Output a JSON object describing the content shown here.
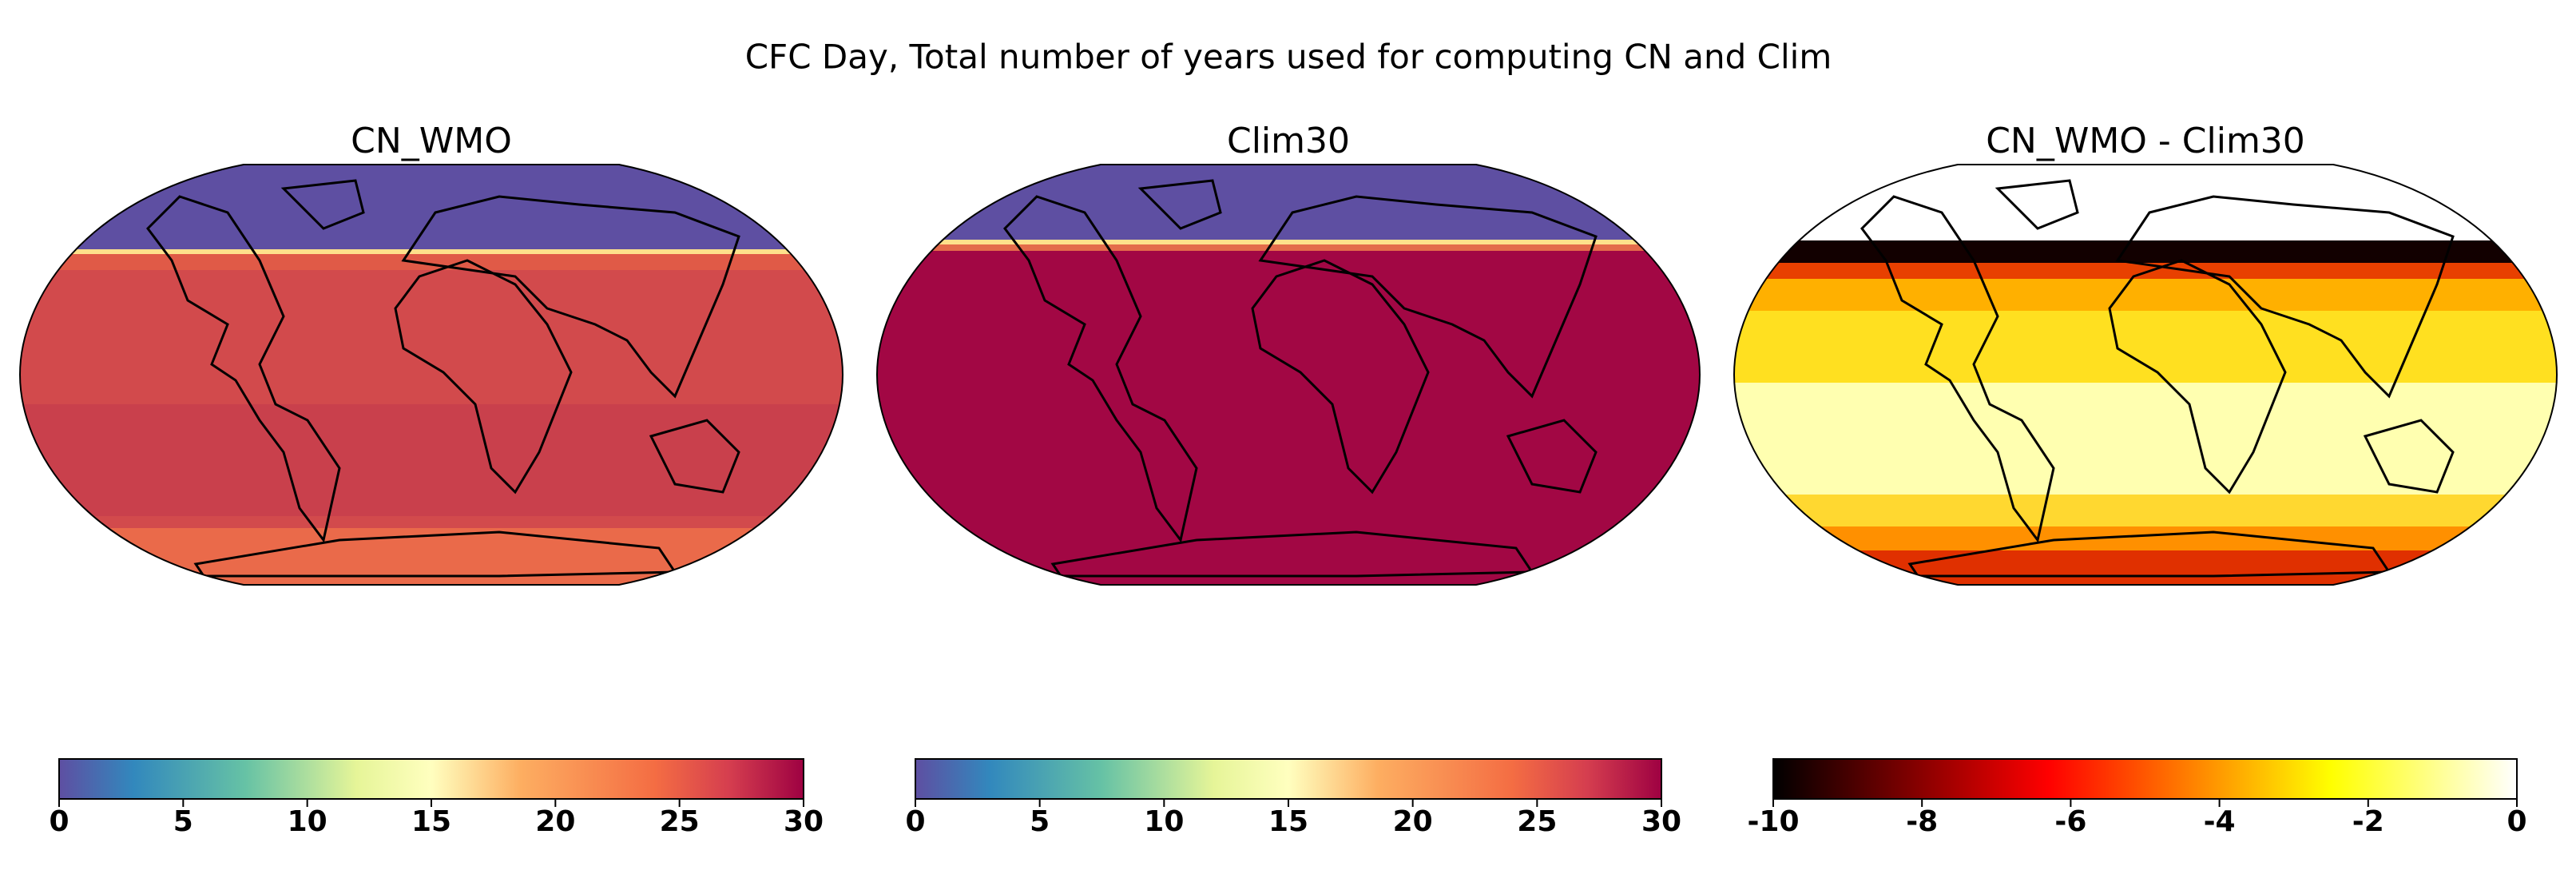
{
  "figure": {
    "title": "CFC Day, Total number of years used for computing CN and Clim",
    "panels": [
      {
        "title": "CN_WMO",
        "colorbar": {
          "lim": [
            0,
            30
          ],
          "ticks": [
            0,
            5,
            10,
            15,
            20,
            25,
            30
          ]
        }
      },
      {
        "title": "Clim30",
        "colorbar": {
          "lim": [
            0,
            30
          ],
          "ticks": [
            0,
            5,
            10,
            15,
            20,
            25,
            30
          ]
        }
      },
      {
        "title": "CN_WMO - Clim30",
        "colorbar": {
          "lim": [
            -10,
            0
          ],
          "ticks": [
            -10,
            -8,
            -6,
            -4,
            -2,
            0
          ]
        }
      }
    ]
  }
}
